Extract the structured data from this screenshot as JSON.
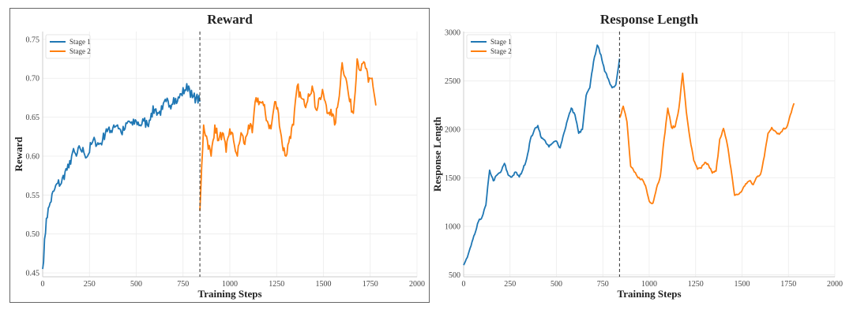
{
  "chart_data": [
    {
      "type": "line",
      "title": "Reward",
      "xlabel": "Training Steps",
      "ylabel": "Reward",
      "xlim": [
        0,
        2000
      ],
      "ylim": [
        0.445,
        0.76
      ],
      "xticks": [
        0,
        250,
        500,
        750,
        1000,
        1250,
        1500,
        1750,
        2000
      ],
      "yticks": [
        0.45,
        0.5,
        0.55,
        0.6,
        0.65,
        0.7,
        0.75
      ],
      "ytick_labels": [
        "0.45",
        "0.50",
        "0.55",
        "0.60",
        "0.65",
        "0.70",
        "0.75"
      ],
      "grid": true,
      "legend": "top-left",
      "stage_boundary": 840,
      "series": [
        {
          "name": "Stage 1",
          "color": "#1f77b4",
          "x_start": 0,
          "x_step": 20,
          "values": [
            0.455,
            0.52,
            0.54,
            0.555,
            0.565,
            0.565,
            0.58,
            0.585,
            0.605,
            0.6,
            0.61,
            0.605,
            0.6,
            0.615,
            0.62,
            0.615,
            0.62,
            0.635,
            0.63,
            0.64,
            0.64,
            0.63,
            0.635,
            0.645,
            0.64,
            0.645,
            0.64,
            0.645,
            0.64,
            0.655,
            0.66,
            0.655,
            0.66,
            0.67,
            0.665,
            0.675,
            0.67,
            0.68,
            0.685,
            0.69,
            0.675,
            0.675,
            0.67
          ]
        },
        {
          "name": "Stage 2",
          "color": "#ff7f0e",
          "x_start": 840,
          "x_step": 20,
          "values": [
            0.53,
            0.64,
            0.62,
            0.6,
            0.64,
            0.62,
            0.63,
            0.605,
            0.635,
            0.62,
            0.6,
            0.63,
            0.615,
            0.64,
            0.63,
            0.675,
            0.67,
            0.665,
            0.645,
            0.635,
            0.67,
            0.655,
            0.615,
            0.6,
            0.625,
            0.64,
            0.69,
            0.675,
            0.665,
            0.68,
            0.69,
            0.66,
            0.675,
            0.68,
            0.655,
            0.66,
            0.64,
            0.67,
            0.72,
            0.7,
            0.67,
            0.655,
            0.725,
            0.71,
            0.72,
            0.695,
            0.7,
            0.665
          ]
        }
      ]
    },
    {
      "type": "line",
      "title": "Response Length",
      "xlabel": "Training Steps",
      "ylabel": "Response Length",
      "xlim": [
        0,
        2000
      ],
      "ylim": [
        480,
        3010
      ],
      "xticks": [
        0,
        250,
        500,
        750,
        1000,
        1250,
        1500,
        1750,
        2000
      ],
      "yticks": [
        500,
        1000,
        1500,
        2000,
        2500,
        3000
      ],
      "ytick_labels": [
        "500",
        "1000",
        "1500",
        "2000",
        "2500",
        "3000"
      ],
      "grid": true,
      "legend": "top-left",
      "stage_boundary": 840,
      "series": [
        {
          "name": "Stage 1",
          "color": "#1f77b4",
          "x_start": 0,
          "x_step": 20,
          "values": [
            600,
            680,
            800,
            920,
            1050,
            1100,
            1220,
            1580,
            1470,
            1530,
            1560,
            1650,
            1530,
            1510,
            1560,
            1510,
            1590,
            1700,
            1900,
            1990,
            2040,
            1910,
            1880,
            1820,
            1860,
            1880,
            1810,
            1960,
            2100,
            2220,
            2150,
            1960,
            2000,
            2350,
            2430,
            2700,
            2870,
            2770,
            2600,
            2520,
            2430,
            2460,
            2730
          ]
        },
        {
          "name": "Stage 2",
          "color": "#ff7f0e",
          "x_start": 840,
          "x_step": 20,
          "values": [
            2120,
            2240,
            2080,
            1620,
            1560,
            1500,
            1490,
            1420,
            1260,
            1240,
            1400,
            1520,
            1900,
            2220,
            2020,
            2030,
            2220,
            2580,
            2180,
            1900,
            1680,
            1590,
            1600,
            1660,
            1630,
            1550,
            1570,
            1900,
            2010,
            1850,
            1600,
            1320,
            1330,
            1370,
            1440,
            1470,
            1430,
            1510,
            1540,
            1720,
            1960,
            2020,
            1980,
            1950,
            2000,
            2020,
            2150,
            2270
          ]
        }
      ]
    }
  ]
}
